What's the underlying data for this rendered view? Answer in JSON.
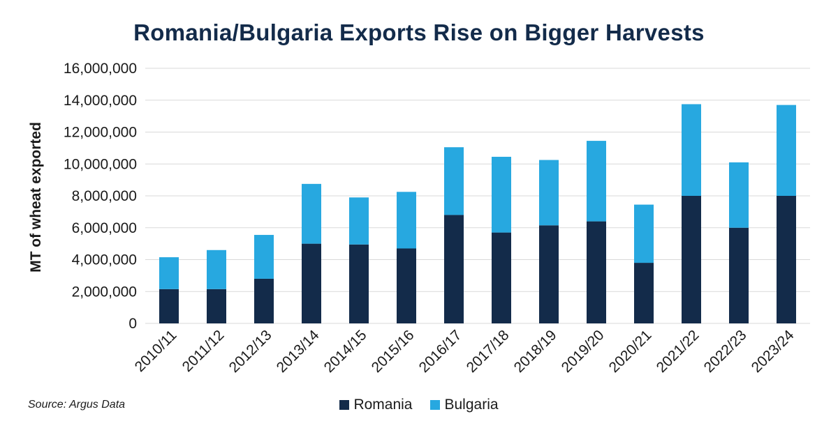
{
  "chart_data": {
    "type": "bar",
    "stacked": true,
    "title": "Romania/Bulgaria Exports Rise on Bigger Harvests",
    "xlabel": "",
    "ylabel": "MT of wheat exported",
    "ylim": [
      0,
      16000000
    ],
    "yticks": [
      0,
      2000000,
      4000000,
      6000000,
      8000000,
      10000000,
      12000000,
      14000000,
      16000000
    ],
    "ytick_labels": [
      "0",
      "2,000,000",
      "4,000,000",
      "6,000,000",
      "8,000,000",
      "10,000,000",
      "12,000,000",
      "14,000,000",
      "16,000,000"
    ],
    "grid": true,
    "legend_position": "bottom-center",
    "categories": [
      "2010/11",
      "2011/12",
      "2012/13",
      "2013/14",
      "2014/15",
      "2015/16",
      "2016/17",
      "2017/18",
      "2018/19",
      "2019/20",
      "2020/21",
      "2021/22",
      "2022/23",
      "2023/24"
    ],
    "series": [
      {
        "name": "Romania",
        "color": "#132b4a",
        "values": [
          2150000,
          2150000,
          2800000,
          5000000,
          4950000,
          4700000,
          6800000,
          5700000,
          6150000,
          6400000,
          3800000,
          8000000,
          6000000,
          8000000
        ]
      },
      {
        "name": "Bulgaria",
        "color": "#27a8e0",
        "values": [
          2000000,
          2450000,
          2750000,
          3750000,
          2950000,
          3550000,
          4250000,
          4750000,
          4100000,
          5050000,
          3650000,
          5750000,
          4100000,
          5700000
        ]
      }
    ],
    "source": "Source: Argus Data"
  }
}
